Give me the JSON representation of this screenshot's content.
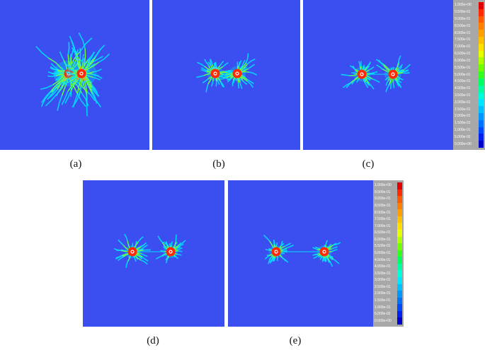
{
  "colors": {
    "background": "#3b4ef0",
    "legend_background": "#a8a8a8"
  },
  "panels": [
    {
      "id": "a",
      "caption": "(a)",
      "pattern": "x-shaped crack fan, two holes close"
    },
    {
      "id": "b",
      "caption": "(b)",
      "pattern": "two crack clusters, small spacing"
    },
    {
      "id": "c",
      "caption": "(c)",
      "pattern": "two crack clusters, medium spacing"
    },
    {
      "id": "d",
      "caption": "(d)",
      "pattern": "two crack clusters, large spacing"
    },
    {
      "id": "e",
      "caption": "(e)",
      "pattern": "two crack clusters, largest spacing"
    }
  ],
  "legend": {
    "labels": [
      "1.000e+00",
      "9.500e-01",
      "9.000e-01",
      "8.500e-01",
      "8.000e-01",
      "7.500e-01",
      "7.000e-01",
      "6.500e-01",
      "6.000e-01",
      "5.500e-01",
      "5.000e-01",
      "4.500e-01",
      "4.000e-01",
      "3.500e-01",
      "3.000e-01",
      "2.500e-01",
      "2.000e-01",
      "1.500e-01",
      "1.000e-01",
      "5.000e-02",
      "0.000e+00"
    ],
    "colors": [
      "#e00000",
      "#ff2a00",
      "#ff5a00",
      "#ff8000",
      "#ffa000",
      "#ffc000",
      "#ffe000",
      "#e8ff00",
      "#b0ff00",
      "#70ff00",
      "#30ff20",
      "#00ff60",
      "#00ffa0",
      "#00ffd8",
      "#00e8ff",
      "#00c0ff",
      "#0098ff",
      "#0070ff",
      "#0048ff",
      "#0020f0",
      "#0000c8"
    ]
  }
}
